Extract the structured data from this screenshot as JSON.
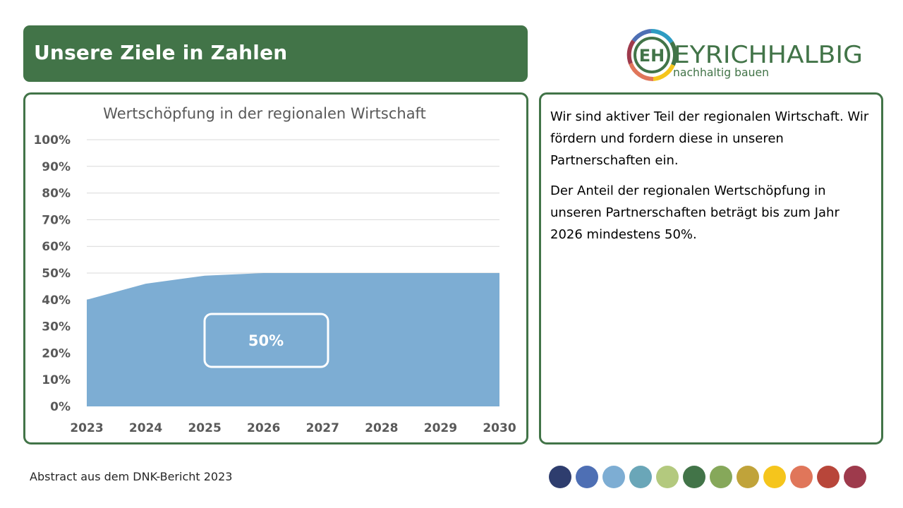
{
  "header": {
    "title": "Unsere Ziele in Zahlen"
  },
  "logo": {
    "brand": "EYRICHHALBIG",
    "tagline": "nachhaltig bauen",
    "monogram": "EH",
    "brand_color": "#427448"
  },
  "chart_data": {
    "type": "area",
    "title": "Wertschöpfung in der regionalen Wirtschaft",
    "xlabel": "",
    "ylabel": "",
    "categories": [
      "2023",
      "2024",
      "2025",
      "2026",
      "2027",
      "2028",
      "2029",
      "2030"
    ],
    "values": [
      40,
      46,
      49,
      50,
      50,
      50,
      50,
      50
    ],
    "ylim": [
      0,
      100
    ],
    "y_ticks": [
      "0%",
      "10%",
      "20%",
      "30%",
      "40%",
      "50%",
      "60%",
      "70%",
      "80%",
      "90%",
      "100%"
    ],
    "grid": true,
    "fill_color": "#7dadd3",
    "annotation": "50%"
  },
  "text_panel": {
    "paragraph1": "Wir sind aktiver Teil der regionalen Wirtschaft. Wir fördern und fordern diese in unseren Partnerschaften ein.",
    "paragraph2": "Der Anteil der regionalen Wertschöpfung in unseren Partnerschaften beträgt bis zum Jahr 2026 mindestens 50%."
  },
  "footer": {
    "source": "Abstract aus dem DNK-Bericht 2023",
    "palette": [
      "#2e3d6e",
      "#4e6fb4",
      "#7dadd3",
      "#6aa6b8",
      "#b3c97e",
      "#427448",
      "#86a85a",
      "#c0a33a",
      "#f5c51c",
      "#e0765a",
      "#b8463a",
      "#9e3a4c"
    ]
  }
}
